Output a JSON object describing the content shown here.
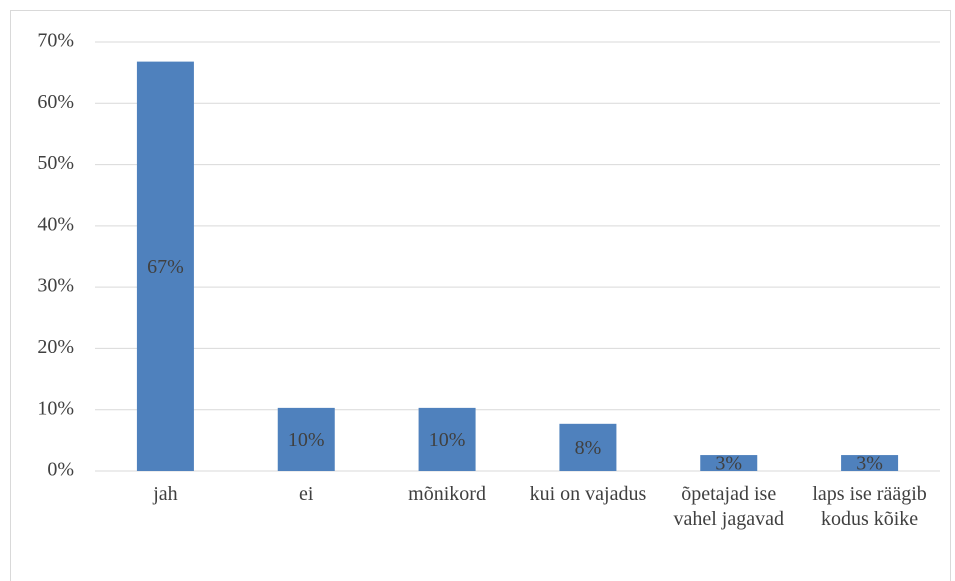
{
  "chart_data": {
    "type": "bar",
    "categories": [
      "jah",
      "ei",
      "mõnikord",
      "kui on vajadus",
      "õpetajad ise vahel jagavad",
      "laps ise räägib kodus kõike"
    ],
    "values": [
      66.8,
      10.3,
      10.3,
      7.7,
      2.6,
      2.6
    ],
    "value_labels": [
      "67%",
      "10%",
      "10%",
      "8%",
      "3%",
      "3%"
    ],
    "color": "#4f81bd",
    "ylim": [
      0,
      70
    ],
    "yticks": [
      {
        "value": 0,
        "label": "0%"
      },
      {
        "value": 10,
        "label": "10%"
      },
      {
        "value": 20,
        "label": "20%"
      },
      {
        "value": 30,
        "label": "30%"
      },
      {
        "value": 40,
        "label": "40%"
      },
      {
        "value": 50,
        "label": "50%"
      },
      {
        "value": 60,
        "label": "60%"
      },
      {
        "value": 70,
        "label": "70%"
      }
    ],
    "grid": true
  }
}
